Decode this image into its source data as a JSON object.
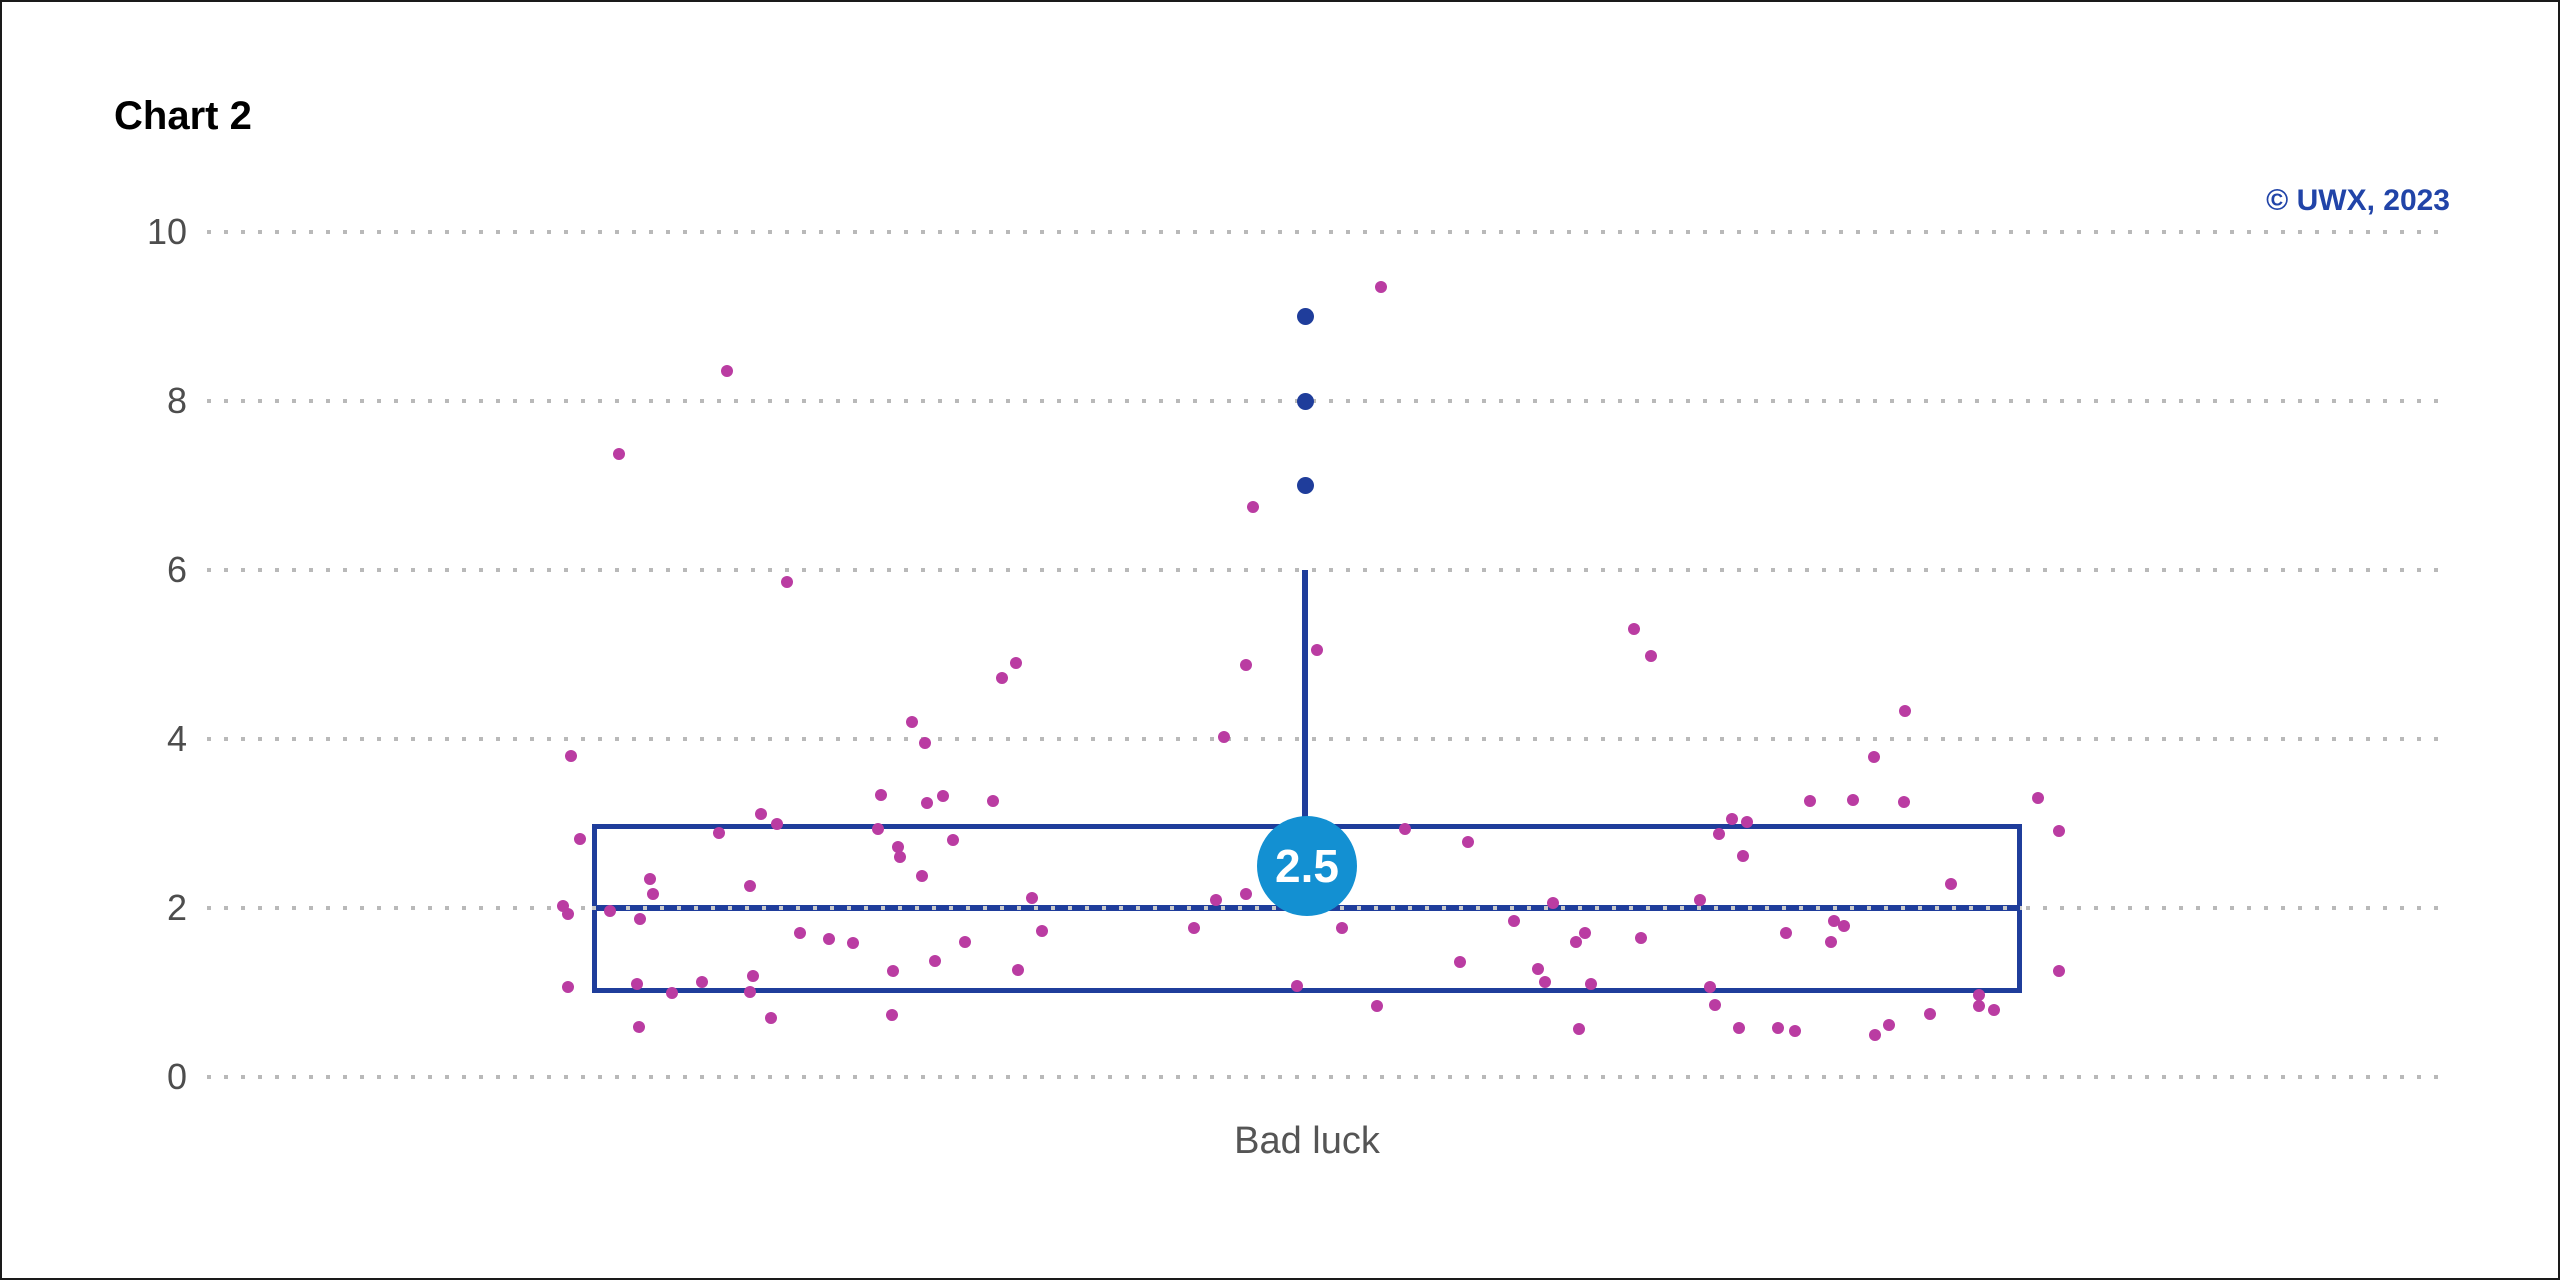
{
  "header": {
    "title": "Chart 2",
    "copyright": "© UWX, 2023"
  },
  "chart_data": {
    "type": "box",
    "title": "Chart 2",
    "xlabel": "Bad luck",
    "categories": [
      "Bad luck"
    ],
    "y_axis": {
      "ticks": [
        0,
        2,
        4,
        6,
        8,
        10
      ],
      "min": 0,
      "max": 10,
      "grid": "dotted"
    },
    "box": {
      "q1": 1,
      "median": 2,
      "q3": 3,
      "whisker_high": 6,
      "mean": 2.5,
      "mean_label": "2.5",
      "outliers": [
        7,
        8,
        9
      ]
    },
    "points_note": "jittered raw observations; x = horizontal jitter position (px), v = value",
    "points": [
      [
        1379,
        9.35
      ],
      [
        725,
        8.35
      ],
      [
        617,
        7.37
      ],
      [
        1251,
        6.75
      ],
      [
        785,
        5.86
      ],
      [
        1632,
        5.3
      ],
      [
        1649,
        4.98
      ],
      [
        1315,
        5.05
      ],
      [
        1244,
        4.87
      ],
      [
        1014,
        4.9
      ],
      [
        1000,
        4.72
      ],
      [
        910,
        4.2
      ],
      [
        923,
        3.95
      ],
      [
        1222,
        4.02
      ],
      [
        569,
        3.8
      ],
      [
        1903,
        4.33
      ],
      [
        1872,
        3.79
      ],
      [
        1902,
        3.25
      ],
      [
        1808,
        3.27
      ],
      [
        2036,
        3.3
      ],
      [
        1851,
        3.28
      ],
      [
        879,
        3.34
      ],
      [
        925,
        3.24
      ],
      [
        941,
        3.32
      ],
      [
        991,
        3.27
      ],
      [
        759,
        3.11
      ],
      [
        775,
        3.0
      ],
      [
        1730,
        3.05
      ],
      [
        1745,
        3.02
      ],
      [
        1717,
        2.88
      ],
      [
        1741,
        2.62
      ],
      [
        2057,
        2.91
      ],
      [
        717,
        2.89
      ],
      [
        876,
        2.93
      ],
      [
        1403,
        2.93
      ],
      [
        1466,
        2.78
      ],
      [
        578,
        2.82
      ],
      [
        951,
        2.8
      ],
      [
        896,
        2.72
      ],
      [
        898,
        2.6
      ],
      [
        648,
        2.34
      ],
      [
        651,
        2.17
      ],
      [
        748,
        2.26
      ],
      [
        920,
        2.38
      ],
      [
        1949,
        2.28
      ],
      [
        1030,
        2.12
      ],
      [
        1698,
        2.1
      ],
      [
        1551,
        2.06
      ],
      [
        561,
        2.02
      ],
      [
        566,
        1.93
      ],
      [
        608,
        1.97
      ],
      [
        638,
        1.87
      ],
      [
        1214,
        2.1
      ],
      [
        1244,
        2.16
      ],
      [
        1832,
        1.85
      ],
      [
        1842,
        1.79
      ],
      [
        1784,
        1.7
      ],
      [
        1829,
        1.6
      ],
      [
        1583,
        1.7
      ],
      [
        1574,
        1.6
      ],
      [
        1639,
        1.65
      ],
      [
        798,
        1.71
      ],
      [
        827,
        1.63
      ],
      [
        963,
        1.6
      ],
      [
        851,
        1.58
      ],
      [
        1192,
        1.76
      ],
      [
        1340,
        1.76
      ],
      [
        1512,
        1.85
      ],
      [
        1040,
        1.73
      ],
      [
        1458,
        1.36
      ],
      [
        1536,
        1.28
      ],
      [
        933,
        1.37
      ],
      [
        891,
        1.26
      ],
      [
        1016,
        1.27
      ],
      [
        2057,
        1.25
      ],
      [
        700,
        1.12
      ],
      [
        751,
        1.2
      ],
      [
        748,
        1.01
      ],
      [
        1295,
        1.08
      ],
      [
        1543,
        1.13
      ],
      [
        1589,
        1.1
      ],
      [
        1708,
        1.07
      ],
      [
        566,
        1.06
      ],
      [
        635,
        1.1
      ],
      [
        670,
        1.0
      ],
      [
        1375,
        0.84
      ],
      [
        1713,
        0.85
      ],
      [
        1977,
        0.97
      ],
      [
        1977,
        0.84
      ],
      [
        1992,
        0.79
      ],
      [
        1928,
        0.75
      ],
      [
        1887,
        0.61
      ],
      [
        1873,
        0.5
      ],
      [
        1793,
        0.55
      ],
      [
        1776,
        0.58
      ],
      [
        1737,
        0.58
      ],
      [
        1577,
        0.57
      ],
      [
        637,
        0.59
      ],
      [
        769,
        0.7
      ],
      [
        890,
        0.73
      ]
    ]
  },
  "colors": {
    "box_stroke": "#1f3d9b",
    "outlier": "#1f3d9b",
    "point": "#ba3ca2",
    "mean_badge": "#1390d2",
    "mean_badge_text": "#ffffff",
    "grid": "#b9b9b9",
    "tick_text": "#4d4d4d",
    "title_text": "#000000",
    "copyright_text": "#2144a8",
    "xlabel_text": "#555555"
  }
}
